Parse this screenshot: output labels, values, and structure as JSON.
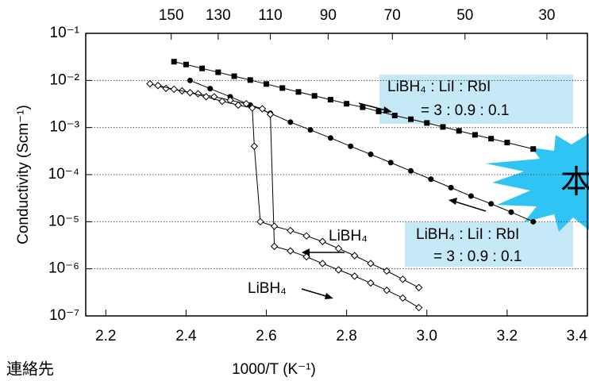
{
  "chart_data": {
    "type": "line",
    "x_label": "1000/T (K⁻¹)",
    "y_label": "Conductivity (Scm⁻¹)",
    "xlim": [
      2.15,
      3.4
    ],
    "xticks": [
      {
        "value": 2.2,
        "label": "2.2"
      },
      {
        "value": 2.4,
        "label": "2.4"
      },
      {
        "value": 2.6,
        "label": "2.6"
      },
      {
        "value": 2.8,
        "label": "2.8"
      },
      {
        "value": 3.0,
        "label": "3.0"
      },
      {
        "value": 3.2,
        "label": "3.2"
      },
      {
        "value": 3.4,
        "label": "3.4"
      }
    ],
    "x2ticks": [
      {
        "value": 2.363,
        "label": "150"
      },
      {
        "value": 2.48,
        "label": "130"
      },
      {
        "value": 2.61,
        "label": "110"
      },
      {
        "value": 2.754,
        "label": "90"
      },
      {
        "value": 2.914,
        "label": "70"
      },
      {
        "value": 3.095,
        "label": "50"
      },
      {
        "value": 3.299,
        "label": "30"
      }
    ],
    "ylim": [
      1e-07,
      0.1
    ],
    "log_y": true,
    "yticks": [
      {
        "value": 0.1,
        "label": "10⁻¹"
      },
      {
        "value": 0.01,
        "label": "10⁻²"
      },
      {
        "value": 0.001,
        "label": "10⁻³"
      },
      {
        "value": 0.0001,
        "label": "10⁻⁴"
      },
      {
        "value": 1e-05,
        "label": "10⁻⁵"
      },
      {
        "value": 1e-06,
        "label": "10⁻⁶"
      },
      {
        "value": 1e-07,
        "label": "10⁻⁷"
      }
    ],
    "grid": true,
    "series": [
      {
        "marker": "square",
        "color": "#000000",
        "x": [
          2.37,
          2.4,
          2.44,
          2.48,
          2.52,
          2.56,
          2.6,
          2.64,
          2.68,
          2.72,
          2.76,
          2.8,
          2.84,
          2.88,
          2.92,
          2.96,
          3.0,
          3.04,
          3.08,
          3.12,
          3.16,
          3.2,
          3.265
        ],
        "values": [
          0.025,
          0.0218,
          0.018,
          0.0149,
          0.0123,
          0.0102,
          0.0084,
          0.0069,
          0.0057,
          0.0047,
          0.0039,
          0.0032,
          0.0027,
          0.0022,
          0.0018,
          0.0015,
          0.00125,
          0.00103,
          0.00085,
          0.0007,
          0.00058,
          0.00048,
          0.00035
        ]
      },
      {
        "marker": "circle",
        "color": "#000000",
        "x": [
          2.41,
          2.46,
          2.51,
          2.56,
          2.61,
          2.66,
          2.71,
          2.76,
          2.81,
          2.86,
          2.91,
          2.96,
          3.01,
          3.06,
          3.11,
          3.16,
          3.21,
          3.265
        ],
        "values": [
          0.01,
          0.0067,
          0.0045,
          0.003,
          0.002,
          0.0013,
          0.00089,
          0.0006,
          0.0004,
          0.00027,
          0.00018,
          0.00012,
          8e-05,
          5.3e-05,
          3.5e-05,
          2.4e-05,
          1.6e-05,
          1e-05
        ]
      },
      {
        "marker": "diamond",
        "color": "#000000",
        "x": [
          2.31,
          2.35,
          2.39,
          2.43,
          2.47,
          2.51,
          2.55,
          2.59,
          2.61,
          2.62,
          2.66,
          2.7,
          2.74,
          2.78,
          2.82,
          2.86,
          2.9,
          2.94,
          2.98
        ],
        "values": [
          0.0085,
          0.0068,
          0.006,
          0.0052,
          0.0045,
          0.0038,
          0.0032,
          0.0025,
          0.0019,
          3e-06,
          2.4e-06,
          1.8e-06,
          1.3e-06,
          9.5e-07,
          7e-07,
          5e-07,
          3.5e-07,
          2.4e-07,
          1.5e-07
        ]
      },
      {
        "marker": "diamond",
        "color": "#000000",
        "x": [
          2.98,
          2.94,
          2.9,
          2.86,
          2.82,
          2.78,
          2.74,
          2.7,
          2.66,
          2.62,
          2.585,
          2.57,
          2.565,
          2.53,
          2.49,
          2.45,
          2.41,
          2.37,
          2.33
        ],
        "values": [
          4e-07,
          6e-07,
          9e-07,
          1.3e-06,
          1.9e-06,
          2.7e-06,
          3.8e-06,
          5e-06,
          6.5e-06,
          8e-06,
          1e-05,
          0.0004,
          0.0026,
          0.003,
          0.0036,
          0.0045,
          0.0055,
          0.0065,
          0.0078
        ]
      }
    ],
    "annotations": [
      "LiBH₄ : LiI : RbI",
      "= 3 : 0.9 : 0.1",
      "LiBH₄ : LiI : RbI",
      "= 3 : 0.9 : 0.1",
      "LiBH₄",
      "LiBH₄",
      "本"
    ],
    "footer": "連絡先"
  }
}
